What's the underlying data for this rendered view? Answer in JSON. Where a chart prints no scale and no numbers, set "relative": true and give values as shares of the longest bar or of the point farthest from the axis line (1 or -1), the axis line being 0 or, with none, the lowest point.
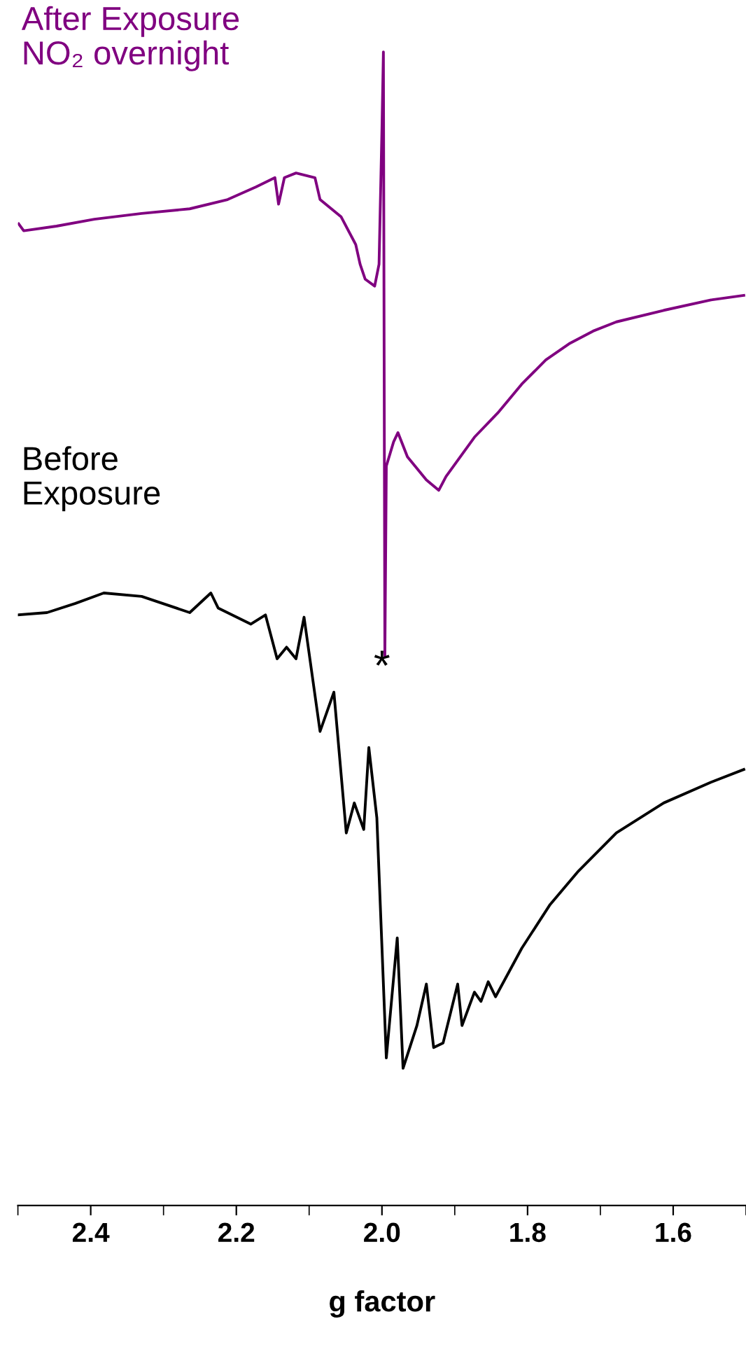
{
  "chart_data": {
    "type": "line",
    "relative": true,
    "xlabel": "g factor",
    "xlim": [
      2.5,
      1.5
    ],
    "xticks": [
      {
        "value": 2.5,
        "label": null
      },
      2.4,
      {
        "value": 2.3,
        "label": null
      },
      2.2,
      {
        "value": 2.1,
        "label": null
      },
      {
        "value": 2.0,
        "label": "2.0"
      },
      {
        "value": 1.9,
        "label": null
      },
      1.8,
      {
        "value": 1.7,
        "label": null
      },
      1.6,
      {
        "value": 1.5,
        "label": null
      }
    ],
    "tick_labels": "x",
    "grid": false,
    "legend": false,
    "marker": "none",
    "line_style": "solid",
    "annotations": [
      "*"
    ],
    "series": [
      {
        "name": "After Exposure\nNO₂ overnight",
        "color": "#800080",
        "x": [
          2.499,
          2.492,
          2.447,
          2.395,
          2.33,
          2.264,
          2.212,
          2.173,
          2.147,
          2.142,
          2.134,
          2.118,
          2.092,
          2.085,
          2.056,
          2.036,
          2.03,
          2.023,
          2.01,
          2.004,
          2.0,
          1.998,
          1.996,
          1.994,
          1.984,
          1.978,
          1.965,
          1.939,
          1.922,
          1.912,
          1.873,
          1.841,
          1.808,
          1.775,
          1.743,
          1.71,
          1.678,
          1.613,
          1.548,
          1.503
        ],
        "values": [
          0.851,
          0.845,
          0.849,
          0.855,
          0.86,
          0.864,
          0.872,
          0.883,
          0.891,
          0.868,
          0.891,
          0.895,
          0.891,
          0.872,
          0.857,
          0.833,
          0.816,
          0.803,
          0.797,
          0.816,
          0.933,
          1.0,
          0.476,
          0.641,
          0.662,
          0.67,
          0.649,
          0.629,
          0.62,
          0.632,
          0.666,
          0.687,
          0.712,
          0.733,
          0.747,
          0.758,
          0.766,
          0.776,
          0.785,
          0.789
        ]
      },
      {
        "name": "Before\nExposure",
        "color": "#000000",
        "x": [
          2.499,
          2.46,
          2.421,
          2.382,
          2.33,
          2.264,
          2.235,
          2.225,
          2.18,
          2.16,
          2.144,
          2.131,
          2.118,
          2.107,
          2.085,
          2.066,
          2.049,
          2.038,
          2.025,
          2.018,
          2.007,
          1.994,
          1.979,
          1.971,
          1.952,
          1.939,
          1.929,
          1.916,
          1.896,
          1.89,
          1.873,
          1.864,
          1.854,
          1.844,
          1.808,
          1.769,
          1.73,
          1.678,
          1.613,
          1.548,
          1.503
        ],
        "values": [
          0.512,
          0.514,
          0.522,
          0.531,
          0.528,
          0.514,
          0.531,
          0.518,
          0.504,
          0.512,
          0.474,
          0.484,
          0.474,
          0.51,
          0.411,
          0.445,
          0.323,
          0.349,
          0.326,
          0.397,
          0.336,
          0.128,
          0.232,
          0.119,
          0.156,
          0.192,
          0.137,
          0.141,
          0.192,
          0.156,
          0.185,
          0.177,
          0.194,
          0.181,
          0.223,
          0.261,
          0.29,
          0.323,
          0.349,
          0.367,
          0.378
        ]
      }
    ]
  }
}
